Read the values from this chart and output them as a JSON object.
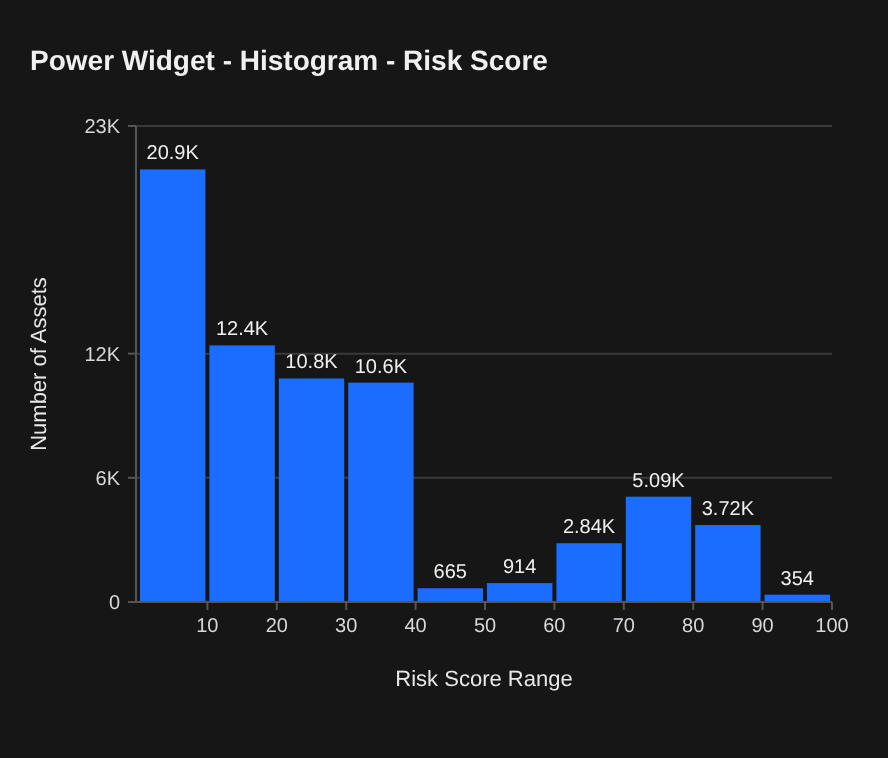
{
  "chart_data": {
    "type": "histogram",
    "title": "Power Widget - Histogram - Risk Score",
    "xlabel": "Risk Score Range",
    "ylabel": "Number of Assets",
    "bins": [
      0,
      10,
      20,
      30,
      40,
      50,
      60,
      70,
      80,
      90,
      100
    ],
    "values": [
      20900,
      12400,
      10800,
      10600,
      665,
      914,
      2840,
      5090,
      3720,
      354
    ],
    "value_labels": [
      "20.9K",
      "12.4K",
      "10.8K",
      "10.6K",
      "665",
      "914",
      "2.84K",
      "5.09K",
      "3.72K",
      "354"
    ],
    "color": "#1a6dff",
    "xlim": [
      0,
      100
    ],
    "xticks": [
      10,
      20,
      30,
      40,
      50,
      60,
      70,
      80,
      90,
      100
    ],
    "ylim": [
      0,
      23000
    ],
    "yticks": [
      0,
      {
        "value": 6000,
        "label": "6K"
      },
      {
        "value": 12000,
        "label": "12K"
      },
      {
        "value": 23000,
        "label": "23K"
      }
    ],
    "grid": "y"
  }
}
